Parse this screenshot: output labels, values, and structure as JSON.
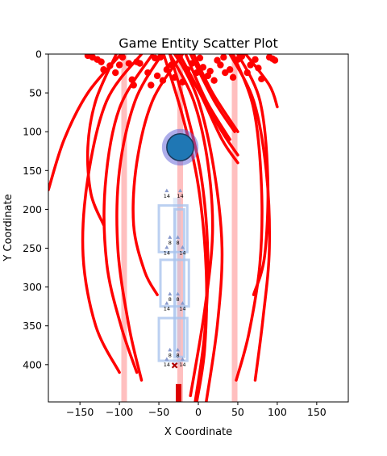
{
  "chart_data": {
    "type": "scatter",
    "title": "Game Entity Scatter Plot",
    "xlabel": "X Coordinate",
    "ylabel": "Y Coordinate",
    "xlim": [
      -190,
      190
    ],
    "ylim": [
      448,
      0
    ],
    "y_inverted": true,
    "grid": false,
    "xticks": [
      -150,
      -100,
      -50,
      0,
      50,
      100,
      150
    ],
    "yticks": [
      0,
      50,
      100,
      150,
      200,
      250,
      300,
      350,
      400
    ],
    "colors": {
      "projectile": "#ff0000",
      "lane": "#ffbfbf",
      "player": "#1f77b4",
      "player_ring": "#6a6ad8",
      "tower": "#aac4ee",
      "marker": "#8899cc",
      "hit": "#b00000"
    },
    "lanes_x": [
      -94,
      -23,
      46
    ],
    "player": {
      "x": -23,
      "y": 120,
      "r": 17
    },
    "tower_labels": [
      {
        "x": -40,
        "y": 180,
        "text": "14"
      },
      {
        "x": -23,
        "y": 180,
        "text": "14"
      },
      {
        "x": -36,
        "y": 240,
        "text": "8"
      },
      {
        "x": -26,
        "y": 240,
        "text": "8"
      },
      {
        "x": -40,
        "y": 253,
        "text": "14"
      },
      {
        "x": -20,
        "y": 253,
        "text": "14"
      },
      {
        "x": -36,
        "y": 313,
        "text": "8"
      },
      {
        "x": -26,
        "y": 313,
        "text": "8"
      },
      {
        "x": -40,
        "y": 325,
        "text": "14"
      },
      {
        "x": -20,
        "y": 325,
        "text": "14"
      },
      {
        "x": -36,
        "y": 385,
        "text": "8"
      },
      {
        "x": -26,
        "y": 385,
        "text": "8"
      },
      {
        "x": -40,
        "y": 397,
        "text": "14"
      },
      {
        "x": -20,
        "y": 397,
        "text": "14"
      }
    ],
    "hit_marker": {
      "x": -30,
      "y": 401
    },
    "spawn_marker": {
      "x": -25,
      "y": 425
    },
    "enemies": [
      {
        "x": -140,
        "y": 2
      },
      {
        "x": -134,
        "y": 4
      },
      {
        "x": -128,
        "y": 7
      },
      {
        "x": -123,
        "y": 10
      },
      {
        "x": -120,
        "y": 20
      },
      {
        "x": -112,
        "y": 15
      },
      {
        "x": -105,
        "y": 24
      },
      {
        "x": -100,
        "y": 14
      },
      {
        "x": -96,
        "y": 4
      },
      {
        "x": -88,
        "y": 12
      },
      {
        "x": -84,
        "y": 33
      },
      {
        "x": -82,
        "y": 40
      },
      {
        "x": -78,
        "y": 10
      },
      {
        "x": -74,
        "y": 12
      },
      {
        "x": -64,
        "y": 24
      },
      {
        "x": -60,
        "y": 40
      },
      {
        "x": -55,
        "y": 5
      },
      {
        "x": -52,
        "y": 28
      },
      {
        "x": -48,
        "y": 4
      },
      {
        "x": -45,
        "y": 34
      },
      {
        "x": -40,
        "y": 20
      },
      {
        "x": -34,
        "y": 14
      },
      {
        "x": -30,
        "y": 30
      },
      {
        "x": -24,
        "y": 4
      },
      {
        "x": -20,
        "y": 36
      },
      {
        "x": -14,
        "y": 20
      },
      {
        "x": -8,
        "y": 12
      },
      {
        "x": -2,
        "y": 24
      },
      {
        "x": 2,
        "y": 5
      },
      {
        "x": 6,
        "y": 17
      },
      {
        "x": 12,
        "y": 28
      },
      {
        "x": 15,
        "y": 22
      },
      {
        "x": 20,
        "y": 34
      },
      {
        "x": 24,
        "y": 8
      },
      {
        "x": 28,
        "y": 14
      },
      {
        "x": 32,
        "y": 4
      },
      {
        "x": 34,
        "y": 24
      },
      {
        "x": 40,
        "y": 20
      },
      {
        "x": 44,
        "y": 30
      },
      {
        "x": 50,
        "y": 7
      },
      {
        "x": 55,
        "y": 3
      },
      {
        "x": 62,
        "y": 24
      },
      {
        "x": 66,
        "y": 14
      },
      {
        "x": 72,
        "y": 7
      },
      {
        "x": 76,
        "y": 18
      },
      {
        "x": 80,
        "y": 32
      },
      {
        "x": 90,
        "y": 4
      },
      {
        "x": 94,
        "y": 6
      },
      {
        "x": 97,
        "y": 8
      }
    ],
    "trajectories": [
      {
        "x": [
          -46,
          -80,
          -100,
          -102,
          -88,
          -72
        ],
        "y": [
          0,
          60,
          150,
          250,
          350,
          420
        ]
      },
      {
        "x": [
          -58,
          -100,
          -118,
          -116,
          -98,
          -78
        ],
        "y": [
          0,
          70,
          170,
          270,
          350,
          410
        ]
      },
      {
        "x": [
          -72,
          -116,
          -140,
          -146,
          -130,
          -100
        ],
        "y": [
          0,
          60,
          160,
          260,
          350,
          410
        ]
      },
      {
        "x": [
          -98,
          -140,
          -170,
          -190
        ],
        "y": [
          0,
          50,
          110,
          175
        ]
      },
      {
        "x": [
          -104,
          -130,
          -140,
          -136,
          -120
        ],
        "y": [
          0,
          60,
          120,
          180,
          220
        ]
      },
      {
        "x": [
          -20,
          -58,
          -78,
          -82,
          -68,
          -52
        ],
        "y": [
          0,
          60,
          140,
          220,
          280,
          310
        ]
      },
      {
        "x": [
          -36,
          -6,
          12,
          18,
          8,
          -10
        ],
        "y": [
          0,
          60,
          140,
          230,
          330,
          440
        ]
      },
      {
        "x": [
          -36,
          -16,
          4,
          12,
          8,
          -4
        ],
        "y": [
          0,
          70,
          160,
          260,
          360,
          448
        ]
      },
      {
        "x": [
          -28,
          0,
          20,
          30,
          24,
          10
        ],
        "y": [
          0,
          60,
          150,
          250,
          350,
          448
        ]
      },
      {
        "x": [
          -44,
          -20,
          0,
          10,
          8,
          -2
        ],
        "y": [
          0,
          80,
          170,
          280,
          380,
          448
        ]
      },
      {
        "x": [
          -10,
          20,
          46
        ],
        "y": [
          0,
          60,
          100
        ]
      },
      {
        "x": [
          -30,
          -4,
          30,
          50
        ],
        "y": [
          0,
          40,
          100,
          130
        ]
      },
      {
        "x": [
          -24,
          2,
          30,
          50
        ],
        "y": [
          0,
          50,
          110,
          140
        ]
      },
      {
        "x": [
          -16,
          10,
          40
        ],
        "y": [
          0,
          60,
          110
        ]
      },
      {
        "x": [
          -6,
          18,
          50
        ],
        "y": [
          0,
          50,
          100
        ]
      },
      {
        "x": [
          44,
          70,
          80,
          78,
          64,
          48
        ],
        "y": [
          0,
          70,
          170,
          270,
          360,
          420
        ]
      },
      {
        "x": [
          50,
          78,
          88,
          84,
          70
        ],
        "y": [
          0,
          60,
          160,
          260,
          310
        ]
      },
      {
        "x": [
          40,
          70,
          86,
          90,
          82,
          72
        ],
        "y": [
          0,
          60,
          150,
          250,
          340,
          420
        ]
      },
      {
        "x": [
          60,
          90,
          100
        ],
        "y": [
          0,
          40,
          68
        ]
      }
    ]
  }
}
